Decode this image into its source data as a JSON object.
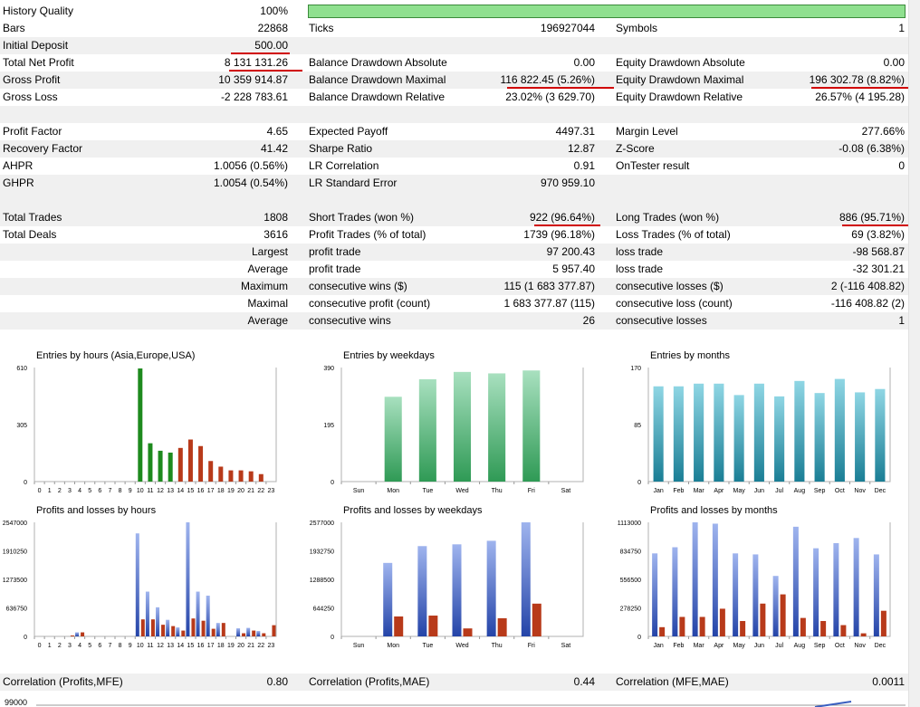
{
  "quality": {
    "label": "History Quality",
    "value": "100%",
    "fill": 1.0
  },
  "rows": [
    {
      "c1": "Bars",
      "v1": "22868",
      "c2": "Ticks",
      "v2": "196927044",
      "c3": "Symbols",
      "v3": "1"
    },
    {
      "c1": "Initial Deposit",
      "v1": "500.00",
      "c2": "",
      "v2": "",
      "c3": "",
      "v3": ""
    },
    {
      "c1": "Total Net Profit",
      "v1": "8 131 131.26",
      "c2": "Balance Drawdown Absolute",
      "v2": "0.00",
      "c3": "Equity Drawdown Absolute",
      "v3": "0.00"
    },
    {
      "c1": "Gross Profit",
      "v1": "10 359 914.87",
      "c2": "Balance Drawdown Maximal",
      "v2": "116 822.45 (5.26%)",
      "c3": "Equity Drawdown Maximal",
      "v3": "196 302.78 (8.82%)"
    },
    {
      "c1": "Gross Loss",
      "v1": "-2 228 783.61",
      "c2": "Balance Drawdown Relative",
      "v2": "23.02% (3 629.70)",
      "c3": "Equity Drawdown Relative",
      "v3": "26.57% (4 195.28)"
    },
    {
      "c1": "",
      "v1": "",
      "c2": "",
      "v2": "",
      "c3": "",
      "v3": ""
    },
    {
      "c1": "Profit Factor",
      "v1": "4.65",
      "c2": "Expected Payoff",
      "v2": "4497.31",
      "c3": "Margin Level",
      "v3": "277.66%"
    },
    {
      "c1": "Recovery Factor",
      "v1": "41.42",
      "c2": "Sharpe Ratio",
      "v2": "12.87",
      "c3": "Z-Score",
      "v3": "-0.08 (6.38%)"
    },
    {
      "c1": "AHPR",
      "v1": "1.0056 (0.56%)",
      "c2": "LR Correlation",
      "v2": "0.91",
      "c3": "OnTester result",
      "v3": "0"
    },
    {
      "c1": "GHPR",
      "v1": "1.0054 (0.54%)",
      "c2": "LR Standard Error",
      "v2": "970 959.10",
      "c3": "",
      "v3": ""
    },
    {
      "c1": "",
      "v1": "",
      "c2": "",
      "v2": "",
      "c3": "",
      "v3": ""
    },
    {
      "c1": "Total Trades",
      "v1": "1808",
      "c2": "Short Trades (won %)",
      "v2": "922 (96.64%)",
      "c3": "Long Trades (won %)",
      "v3": "886 (95.71%)"
    },
    {
      "c1": "Total Deals",
      "v1": "3616",
      "c2": "Profit Trades (% of total)",
      "v2": "1739 (96.18%)",
      "c3": "Loss Trades (% of total)",
      "v3": "69 (3.82%)"
    },
    {
      "c1": "",
      "v1": "Largest",
      "c2": "profit trade",
      "v2": "97 200.43",
      "c3": "loss trade",
      "v3": "-98 568.87"
    },
    {
      "c1": "",
      "v1": "Average",
      "c2": "profit trade",
      "v2": "5 957.40",
      "c3": "loss trade",
      "v3": "-32 301.21"
    },
    {
      "c1": "",
      "v1": "Maximum",
      "c2": "consecutive wins ($)",
      "v2": "115 (1 683 377.87)",
      "c3": "consecutive losses ($)",
      "v3": "2 (-116 408.82)"
    },
    {
      "c1": "",
      "v1": "Maximal",
      "c2": "consecutive profit (count)",
      "v2": "1 683 377.87 (115)",
      "c3": "consecutive loss (count)",
      "v3": "-116 408.82 (2)"
    },
    {
      "c1": "",
      "v1": "Average",
      "c2": "consecutive wins",
      "v2": "26",
      "c3": "consecutive losses",
      "v3": "1"
    }
  ],
  "correlation": {
    "c1": "Correlation (Profits,MFE)",
    "v1": "0.80",
    "c2": "Correlation (Profits,MAE)",
    "v2": "0.44",
    "c3": "Correlation (MFE,MAE)",
    "v3": "0.0011"
  },
  "bottom_axis_label": "99000",
  "colors": {
    "highlight": "#d00000",
    "green": "#1e8a1e",
    "red": "#b83a1a",
    "blue": "#3a5fc0",
    "teal": "#2a9ab0",
    "quality_fill": "#8fe08f"
  },
  "chart_data": [
    {
      "type": "bar",
      "title": "Entries by hours (Asia,Europe,USA)",
      "ylim": [
        0,
        610
      ],
      "yticks": [
        "0",
        "305",
        "610"
      ],
      "categories": [
        "0",
        "1",
        "2",
        "3",
        "4",
        "5",
        "6",
        "7",
        "8",
        "9",
        "10",
        "11",
        "12",
        "13",
        "14",
        "15",
        "16",
        "17",
        "18",
        "19",
        "20",
        "21",
        "22",
        "23"
      ],
      "series": [
        {
          "values": [
            0,
            0,
            0,
            0,
            0,
            0,
            0,
            0,
            0,
            0,
            605,
            205,
            165,
            155,
            180,
            225,
            190,
            110,
            80,
            60,
            60,
            55,
            40,
            0
          ]
        }
      ]
    },
    {
      "type": "bar",
      "title": "Entries by weekdays",
      "ylim": [
        0,
        390
      ],
      "yticks": [
        "0",
        "195",
        "390"
      ],
      "categories": [
        "Sun",
        "Mon",
        "Tue",
        "Wed",
        "Thu",
        "Fri",
        "Sat"
      ],
      "series": [
        {
          "values": [
            0,
            290,
            350,
            375,
            370,
            380,
            0
          ]
        }
      ]
    },
    {
      "type": "bar",
      "title": "Entries by months",
      "ylim": [
        0,
        170
      ],
      "yticks": [
        "0",
        "85",
        "170"
      ],
      "categories": [
        "Jan",
        "Feb",
        "Mar",
        "Apr",
        "May",
        "Jun",
        "Jul",
        "Aug",
        "Sep",
        "Oct",
        "Nov",
        "Dec"
      ],
      "series": [
        {
          "values": [
            142,
            142,
            146,
            146,
            129,
            146,
            127,
            150,
            132,
            153,
            133,
            138
          ]
        }
      ]
    },
    {
      "type": "bar",
      "title": "Profits and losses by hours",
      "ylim": [
        0,
        2547000
      ],
      "yticks": [
        "0",
        "636750",
        "1273500",
        "1910250",
        "2547000"
      ],
      "categories": [
        "0",
        "1",
        "2",
        "3",
        "4",
        "5",
        "6",
        "7",
        "8",
        "9",
        "10",
        "11",
        "12",
        "13",
        "14",
        "15",
        "16",
        "17",
        "18",
        "19",
        "20",
        "21",
        "22",
        "23"
      ],
      "series": [
        {
          "values": [
            0,
            0,
            0,
            0,
            90000,
            0,
            0,
            0,
            0,
            0,
            2300000,
            1000000,
            650000,
            370000,
            200000,
            2547000,
            1000000,
            910000,
            300000,
            0,
            180000,
            190000,
            120000,
            0
          ]
        },
        {
          "values": [
            0,
            0,
            0,
            20000,
            90000,
            0,
            0,
            0,
            0,
            0,
            380000,
            380000,
            260000,
            230000,
            130000,
            400000,
            350000,
            170000,
            300000,
            0,
            70000,
            130000,
            70000,
            250000
          ]
        }
      ]
    },
    {
      "type": "bar",
      "title": "Profits and losses by weekdays",
      "ylim": [
        0,
        2577000
      ],
      "yticks": [
        "0",
        "644250",
        "1288500",
        "1932750",
        "2577000"
      ],
      "categories": [
        "Sun",
        "Mon",
        "Tue",
        "Wed",
        "Thu",
        "Fri",
        "Sat"
      ],
      "series": [
        {
          "values": [
            0,
            1660000,
            2040000,
            2080000,
            2160000,
            2577000,
            0
          ]
        },
        {
          "values": [
            0,
            450000,
            470000,
            180000,
            410000,
            740000,
            0
          ]
        }
      ]
    },
    {
      "type": "bar",
      "title": "Profits and losses by months",
      "ylim": [
        0,
        1113000
      ],
      "yticks": [
        "0",
        "278250",
        "556500",
        "834750",
        "1113000"
      ],
      "categories": [
        "Jan",
        "Feb",
        "Mar",
        "Apr",
        "May",
        "Jun",
        "Jul",
        "Aug",
        "Sep",
        "Oct",
        "Nov",
        "Dec"
      ],
      "series": [
        {
          "values": [
            810000,
            870000,
            1113000,
            1100000,
            810000,
            800000,
            590000,
            1070000,
            860000,
            910000,
            960000,
            800000
          ]
        },
        {
          "values": [
            90000,
            190000,
            190000,
            270000,
            150000,
            320000,
            410000,
            180000,
            150000,
            110000,
            30000,
            250000
          ]
        }
      ]
    }
  ]
}
